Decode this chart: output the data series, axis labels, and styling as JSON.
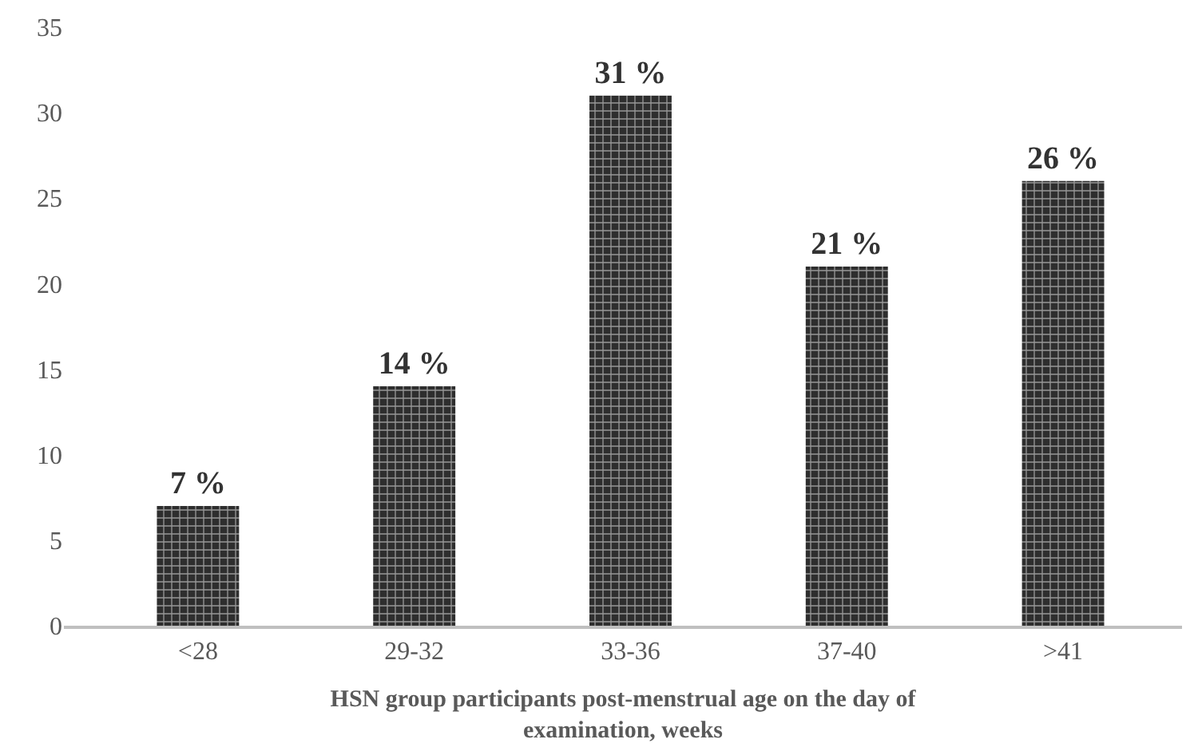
{
  "chart_data": {
    "type": "bar",
    "xlabel": "HSN group participants post-menstrual age on the day of examination, weeks",
    "categories": [
      "<28",
      "29-32",
      "33-36",
      "37-40",
      ">41"
    ],
    "values": [
      7,
      14,
      31,
      21,
      26
    ],
    "value_labels": [
      "7 %",
      "14 %",
      "31 %",
      "21 %",
      "26 %"
    ],
    "color": "#2e2e2e",
    "ylim": [
      0,
      35
    ],
    "yticks": [
      0,
      5,
      10,
      15,
      20,
      25,
      30,
      35
    ]
  }
}
